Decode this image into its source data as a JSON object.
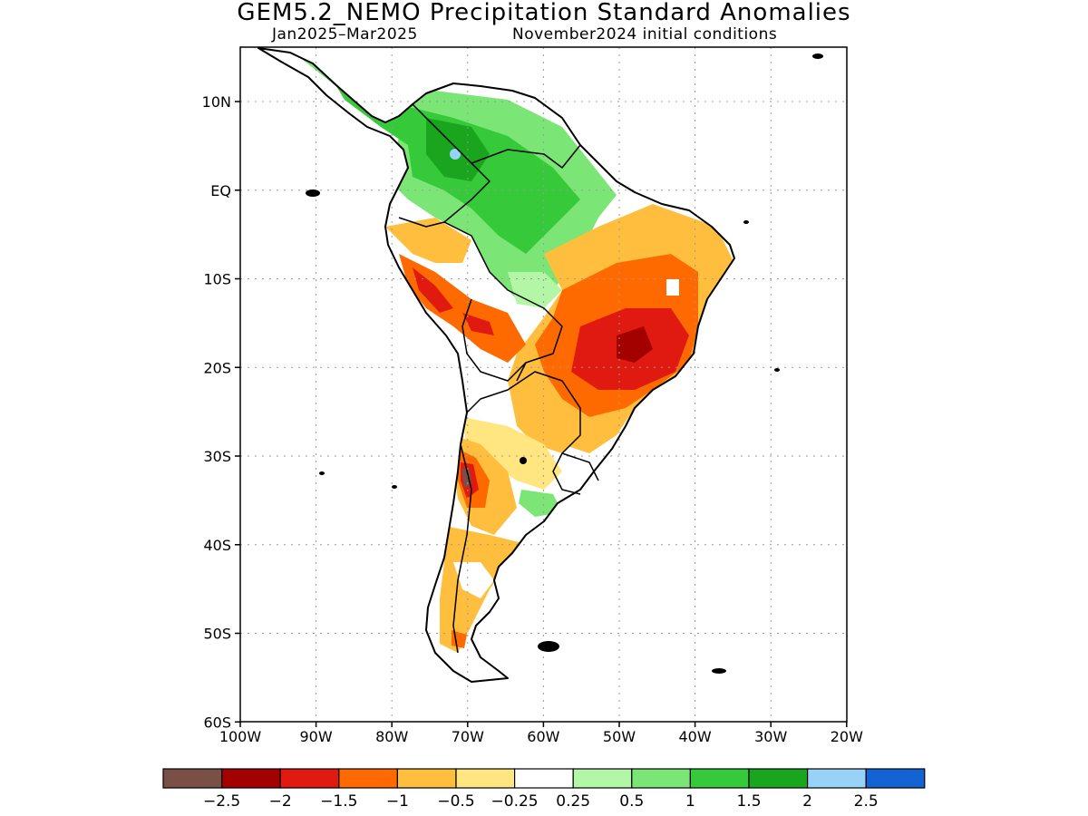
{
  "header": {
    "title": "GEM5.2_NEMO Precipitation Standard Anomalies",
    "period": "Jan2025–Mar2025",
    "init": "November2024 initial conditions"
  },
  "axes": {
    "lat_labels": [
      "10N",
      "EQ",
      "10S",
      "20S",
      "30S",
      "40S",
      "50S",
      "60S"
    ],
    "lon_labels": [
      "100W",
      "90W",
      "80W",
      "70W",
      "60W",
      "50W",
      "40W",
      "30W",
      "20W"
    ]
  },
  "legend": {
    "colors": [
      "#7a5046",
      "#a30000",
      "#e01a10",
      "#ff6a00",
      "#ffbe3d",
      "#ffe680",
      "#ffffff",
      "#b3f7a6",
      "#7be675",
      "#36c93a",
      "#1aa51e",
      "#98d2f8",
      "#1463d2"
    ],
    "labels": [
      "−2.5",
      "−2",
      "−1.5",
      "−1",
      "−0.5",
      "−0.25",
      "0.25",
      "0.5",
      "1",
      "1.5",
      "2",
      "2.5"
    ]
  },
  "map": {
    "region": "South America",
    "lat_range": [
      "60S",
      "14N"
    ],
    "lon_range": [
      "100W",
      "20W"
    ],
    "regions": [
      {
        "name": "Colombia/Venezuela/N Brazil",
        "anomaly_class": "1 to 1.5"
      },
      {
        "name": "Amazon interior",
        "anomaly_class": "0.5 to 1"
      },
      {
        "name": "Central-East Brazil",
        "anomaly_class": "-1.5 to -1"
      },
      {
        "name": "Peru/Bolivia",
        "anomaly_class": "-1.5 to -1"
      },
      {
        "name": "Central Andes (Chile/Argentina)",
        "anomaly_class": "< -2.5"
      },
      {
        "name": "Patagonia",
        "anomaly_class": "-1 to -0.5"
      }
    ]
  }
}
